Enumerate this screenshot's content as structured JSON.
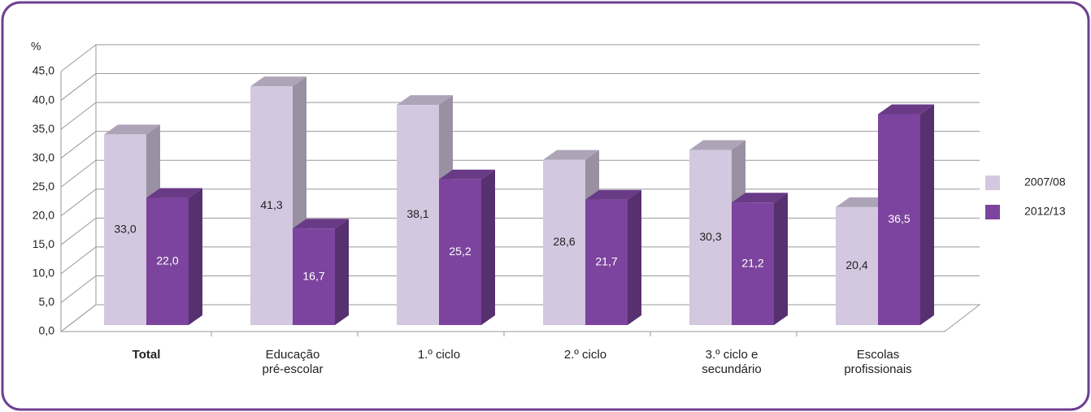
{
  "chart_data": {
    "type": "bar3d",
    "y_label": "%",
    "categories": [
      "Total",
      "Educação\npré-escolar",
      "1.º ciclo",
      "2.º ciclo",
      "3.º ciclo e\nsecundário",
      "Escolas\nprofissionais"
    ],
    "series": [
      {
        "name": "2007/08",
        "color": "#d4c8e0",
        "values": [
          33.0,
          41.3,
          38.1,
          28.6,
          30.3,
          20.4
        ],
        "value_labels": [
          "33,0",
          "41,3",
          "38,1",
          "28,6",
          "30,3",
          "20,4"
        ]
      },
      {
        "name": "2012/13",
        "color": "#7c449e",
        "values": [
          22.0,
          16.7,
          25.2,
          21.7,
          21.2,
          36.5
        ],
        "value_labels": [
          "22,0",
          "16,7",
          "25,2",
          "21,7",
          "21,2",
          "36,5"
        ]
      }
    ],
    "ylim": [
      0,
      45
    ],
    "yticks": [
      {
        "value": 0,
        "label": "0,0"
      },
      {
        "value": 5,
        "label": "5,0"
      },
      {
        "value": 10,
        "label": "10,0"
      },
      {
        "value": 15,
        "label": "15,0"
      },
      {
        "value": 20,
        "label": "20,0"
      },
      {
        "value": 25,
        "label": "25,0"
      },
      {
        "value": 30,
        "label": "30,0"
      },
      {
        "value": 35,
        "label": "35,0"
      },
      {
        "value": 40,
        "label": "40,0"
      },
      {
        "value": 45,
        "label": "45,0"
      }
    ],
    "grid": true,
    "legend": "right"
  }
}
